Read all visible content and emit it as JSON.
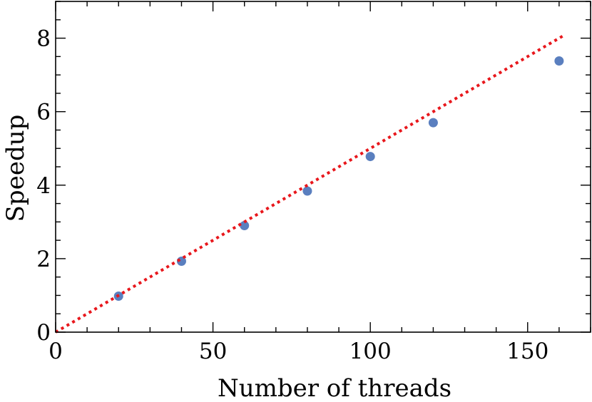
{
  "chart_data": {
    "type": "scatter",
    "xlabel": "Number of threads",
    "ylabel": "Speedup",
    "xlim": [
      0,
      170
    ],
    "ylim": [
      0,
      9
    ],
    "xticks": [
      0,
      50,
      100,
      150
    ],
    "yticks": [
      0,
      2,
      4,
      6,
      8
    ],
    "xtick_labels": [
      "0",
      "50",
      "100",
      "150"
    ],
    "ytick_labels": [
      "0",
      "2",
      "4",
      "6",
      "8"
    ],
    "x_minor_step": 10,
    "y_minor_step": 0.5,
    "grid": false,
    "series": [
      {
        "kind": "scatter",
        "color": "#5a7fbf",
        "x": [
          20,
          40,
          60,
          80,
          100,
          120,
          160
        ],
        "y": [
          0.98,
          1.93,
          2.9,
          3.84,
          4.78,
          5.7,
          7.38
        ]
      },
      {
        "kind": "line",
        "style": "dotted",
        "color": "#e8171c",
        "x": [
          0,
          162
        ],
        "y": [
          0,
          8.1
        ]
      }
    ]
  }
}
